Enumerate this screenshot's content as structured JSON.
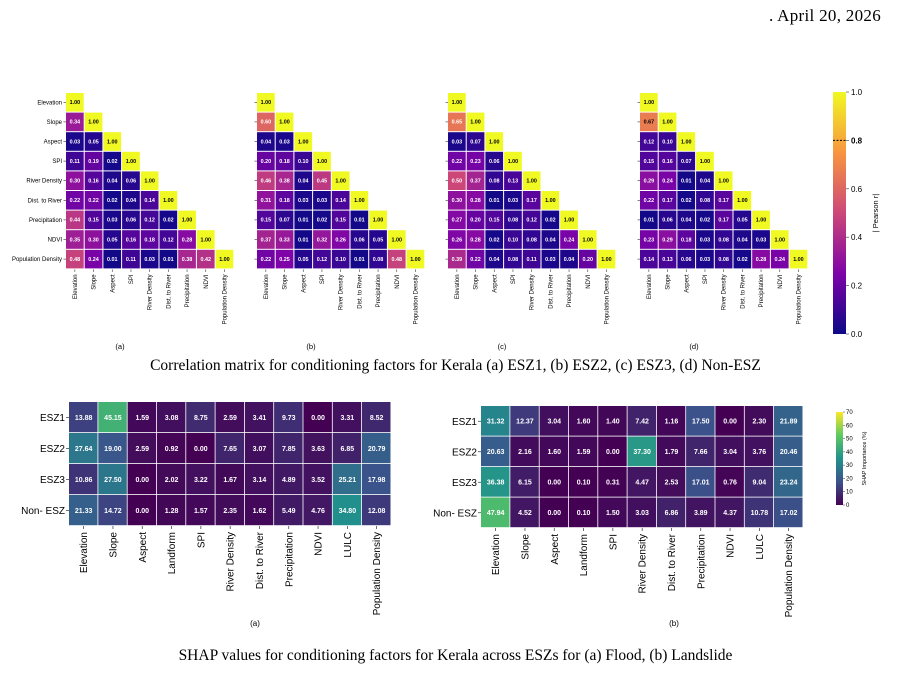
{
  "header": {
    "date": ". April 20, 2026"
  },
  "captions": {
    "correlation": "Correlation matrix for conditioning factors for Kerala (a) ESZ1, (b) ESZ2, (c) ESZ3, (d) Non-ESZ",
    "shap": "SHAP values for conditioning factors for Kerala across ESZs for (a) Flood, (b) Landslide"
  },
  "correlation_colorbar": {
    "label": "| Pearson r|",
    "ticks": [
      "1.0",
      "0.8",
      "0.6",
      "0.4",
      "0.2",
      "0.0"
    ],
    "highlight_tick": "0.8",
    "colors": [
      "#0d0887",
      "#7e03a8",
      "#cc4778",
      "#f89540",
      "#f0f921"
    ]
  },
  "shap_colorbar": {
    "label": "SHAP Importance (%)",
    "ticks": [
      "70",
      "60",
      "50",
      "40",
      "30",
      "20",
      "10",
      "0"
    ],
    "colors": [
      "#440154",
      "#3b528b",
      "#21918c",
      "#5ec962",
      "#fde725"
    ]
  },
  "chart_data": [
    {
      "type": "heatmap",
      "panel_label": "(a)",
      "factors": [
        "Elevation",
        "Slope",
        "Aspect",
        "SPI",
        "River Density",
        "Dist. to River",
        "Precipitation",
        "NDVI",
        "Population Density"
      ],
      "lower_triangle": [
        [
          "1.00"
        ],
        [
          "0.34",
          "1.00"
        ],
        [
          "0.03",
          "0.05",
          "1.00"
        ],
        [
          "0.11",
          "0.19",
          "0.02",
          "1.00"
        ],
        [
          "0.30",
          "0.16",
          "0.04",
          "0.06",
          "1.00"
        ],
        [
          "0.22",
          "0.22",
          "0.02",
          "0.04",
          "0.14",
          "1.00"
        ],
        [
          "0.44",
          "0.15",
          "0.03",
          "0.06",
          "0.12",
          "0.02",
          "1.00"
        ],
        [
          "0.35",
          "0.30",
          "0.05",
          "0.16",
          "0.18",
          "0.12",
          "0.28",
          "1.00"
        ],
        [
          "0.48",
          "0.24",
          "0.01",
          "0.11",
          "0.03",
          "0.01",
          "0.38",
          "0.42",
          "1.00"
        ]
      ]
    },
    {
      "type": "heatmap",
      "panel_label": "(b)",
      "factors": [
        "Elevation",
        "Slope",
        "Aspect",
        "SPI",
        "River Density",
        "Dist. to River",
        "Precipitation",
        "NDVI",
        "Population Density"
      ],
      "lower_triangle": [
        [
          "1.00"
        ],
        [
          "0.60",
          "1.00"
        ],
        [
          "0.04",
          "0.03",
          "1.00"
        ],
        [
          "0.20",
          "0.18",
          "0.10",
          "1.00"
        ],
        [
          "0.46",
          "0.38",
          "0.04",
          "0.45",
          "1.00"
        ],
        [
          "0.31",
          "0.18",
          "0.03",
          "0.03",
          "0.14",
          "1.00"
        ],
        [
          "0.15",
          "0.07",
          "0.01",
          "0.02",
          "0.15",
          "0.01",
          "1.00"
        ],
        [
          "0.37",
          "0.33",
          "0.01",
          "0.32",
          "0.26",
          "0.06",
          "0.05",
          "1.00"
        ],
        [
          "0.22",
          "0.25",
          "0.05",
          "0.12",
          "0.10",
          "0.01",
          "0.08",
          "0.48",
          "1.00"
        ]
      ]
    },
    {
      "type": "heatmap",
      "panel_label": "(c)",
      "factors": [
        "Elevation",
        "Slope",
        "Aspect",
        "SPI",
        "River Density",
        "Dist. to River",
        "Precipitation",
        "NDVI",
        "Population Density"
      ],
      "lower_triangle": [
        [
          "1.00"
        ],
        [
          "0.65",
          "1.00"
        ],
        [
          "0.03",
          "0.07",
          "1.00"
        ],
        [
          "0.22",
          "0.23",
          "0.06",
          "1.00"
        ],
        [
          "0.50",
          "0.37",
          "0.08",
          "0.13",
          "1.00"
        ],
        [
          "0.30",
          "0.28",
          "0.01",
          "0.03",
          "0.17",
          "1.00"
        ],
        [
          "0.27",
          "0.20",
          "0.15",
          "0.08",
          "0.12",
          "0.02",
          "1.00"
        ],
        [
          "0.26",
          "0.28",
          "0.02",
          "0.10",
          "0.08",
          "0.04",
          "0.24",
          "1.00"
        ],
        [
          "0.39",
          "0.22",
          "0.04",
          "0.08",
          "0.11",
          "0.03",
          "0.04",
          "0.20",
          "1.00"
        ]
      ]
    },
    {
      "type": "heatmap",
      "panel_label": "(d)",
      "factors": [
        "Elevation",
        "Slope",
        "Aspect",
        "SPI",
        "River Density",
        "Dist. to River",
        "Precipitation",
        "NDVI",
        "Population Density"
      ],
      "lower_triangle": [
        [
          "1.00"
        ],
        [
          "0.67",
          "1.00"
        ],
        [
          "0.12",
          "0.10",
          "1.00"
        ],
        [
          "0.15",
          "0.16",
          "0.07",
          "1.00"
        ],
        [
          "0.29",
          "0.24",
          "0.01",
          "0.04",
          "1.00"
        ],
        [
          "0.22",
          "0.17",
          "0.02",
          "0.08",
          "0.17",
          "1.00"
        ],
        [
          "0.01",
          "0.06",
          "0.04",
          "0.02",
          "0.17",
          "0.05",
          "1.00"
        ],
        [
          "0.23",
          "0.29",
          "0.18",
          "0.03",
          "0.08",
          "0.04",
          "0.03",
          "1.00"
        ],
        [
          "0.14",
          "0.13",
          "0.06",
          "0.03",
          "0.08",
          "0.02",
          "0.28",
          "0.24",
          "1.00"
        ]
      ]
    },
    {
      "type": "heatmap",
      "panel_label": "(a)",
      "rows": [
        "ESZ1",
        "ESZ2",
        "ESZ3",
        "Non- ESZ"
      ],
      "columns": [
        "Elevation",
        "Slope",
        "Aspect",
        "Landform",
        "SPI",
        "River Density",
        "Dist. to River",
        "Precipitation",
        "NDVI",
        "LULC",
        "Population Density"
      ],
      "values": [
        [
          "13.88",
          "45.15",
          "1.59",
          "3.08",
          "8.75",
          "2.59",
          "3.41",
          "9.73",
          "0.00",
          "3.31",
          "8.52"
        ],
        [
          "27.64",
          "19.00",
          "2.59",
          "0.92",
          "0.00",
          "7.65",
          "3.07",
          "7.85",
          "3.63",
          "6.85",
          "20.79"
        ],
        [
          "10.86",
          "27.50",
          "0.00",
          "2.02",
          "3.22",
          "1.67",
          "3.14",
          "4.89",
          "3.52",
          "25.21",
          "17.98"
        ],
        [
          "21.33",
          "14.72",
          "0.00",
          "1.28",
          "1.57",
          "2.35",
          "1.62",
          "5.49",
          "4.76",
          "34.80",
          "12.08"
        ]
      ]
    },
    {
      "type": "heatmap",
      "panel_label": "(b)",
      "rows": [
        "ESZ1",
        "ESZ2",
        "ESZ3",
        "Non- ESZ"
      ],
      "columns": [
        "Elevation",
        "Slope",
        "Aspect",
        "Landform",
        "SPI",
        "River Density",
        "Dist. to River",
        "Precipitation",
        "NDVI",
        "LULC",
        "Population Density"
      ],
      "values": [
        [
          "31.32",
          "12.37",
          "3.04",
          "1.60",
          "1.40",
          "7.42",
          "1.16",
          "17.50",
          "0.00",
          "2.30",
          "21.89"
        ],
        [
          "20.63",
          "2.16",
          "1.60",
          "1.59",
          "0.00",
          "37.30",
          "1.79",
          "7.66",
          "3.04",
          "3.76",
          "20.46"
        ],
        [
          "36.38",
          "6.15",
          "0.00",
          "0.10",
          "0.31",
          "4.47",
          "2.53",
          "17.01",
          "0.76",
          "9.04",
          "23.24"
        ],
        [
          "47.94",
          "4.52",
          "0.00",
          "0.10",
          "1.50",
          "3.03",
          "6.86",
          "3.89",
          "4.37",
          "10.78",
          "17.02"
        ]
      ]
    }
  ]
}
